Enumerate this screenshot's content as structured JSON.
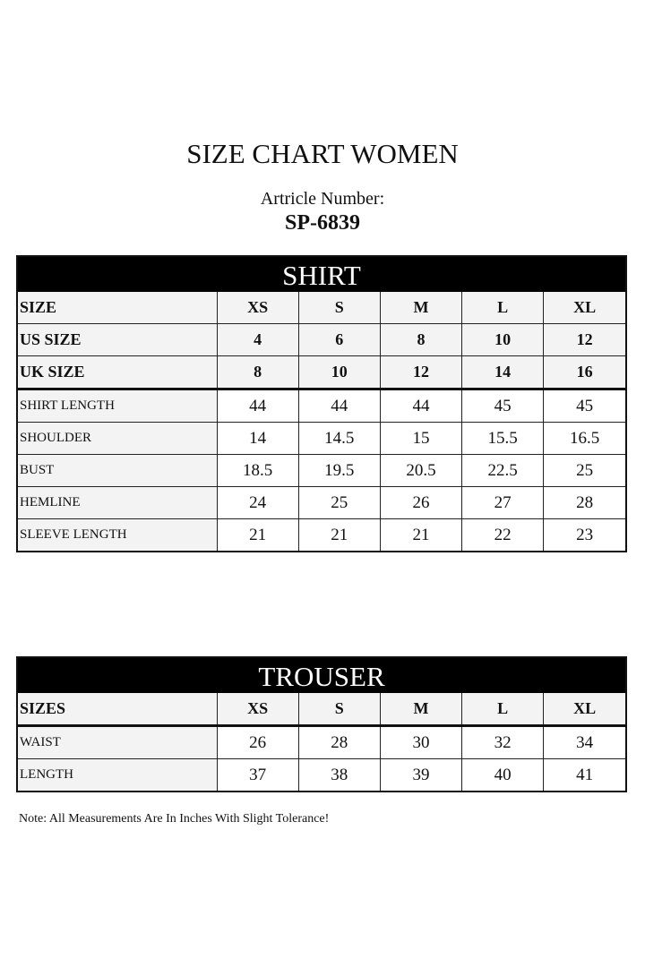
{
  "title": "SIZE CHART WOMEN",
  "article_label": "Artricle Number:",
  "article_number": "SP-6839",
  "shirt": {
    "heading": "SHIRT",
    "header_rows": [
      {
        "label": "SIZE",
        "values": [
          "XS",
          "S",
          "M",
          "L",
          "XL"
        ]
      },
      {
        "label": "US SIZE",
        "values": [
          "4",
          "6",
          "8",
          "10",
          "12"
        ]
      },
      {
        "label": "UK SIZE",
        "values": [
          "8",
          "10",
          "12",
          "14",
          "16"
        ]
      }
    ],
    "rows": [
      {
        "label": "SHIRT LENGTH",
        "values": [
          "44",
          "44",
          "44",
          "45",
          "45"
        ]
      },
      {
        "label": "SHOULDER",
        "values": [
          "14",
          "14.5",
          "15",
          "15.5",
          "16.5"
        ]
      },
      {
        "label": "BUST",
        "values": [
          "18.5",
          "19.5",
          "20.5",
          "22.5",
          "25"
        ]
      },
      {
        "label": "HEMLINE",
        "values": [
          "24",
          "25",
          "26",
          "27",
          "28"
        ]
      },
      {
        "label": "SLEEVE LENGTH",
        "values": [
          "21",
          "21",
          "21",
          "22",
          "23"
        ]
      }
    ]
  },
  "trouser": {
    "heading": "TROUSER",
    "header_rows": [
      {
        "label": "SIZES",
        "values": [
          "XS",
          "S",
          "M",
          "L",
          "XL"
        ]
      }
    ],
    "rows": [
      {
        "label": "WAIST",
        "values": [
          "26",
          "28",
          "30",
          "32",
          "34"
        ]
      },
      {
        "label": "LENGTH",
        "values": [
          "37",
          "38",
          "39",
          "40",
          "41"
        ]
      }
    ]
  },
  "note": "Note: All Measurements Are In Inches With Slight Tolerance!"
}
